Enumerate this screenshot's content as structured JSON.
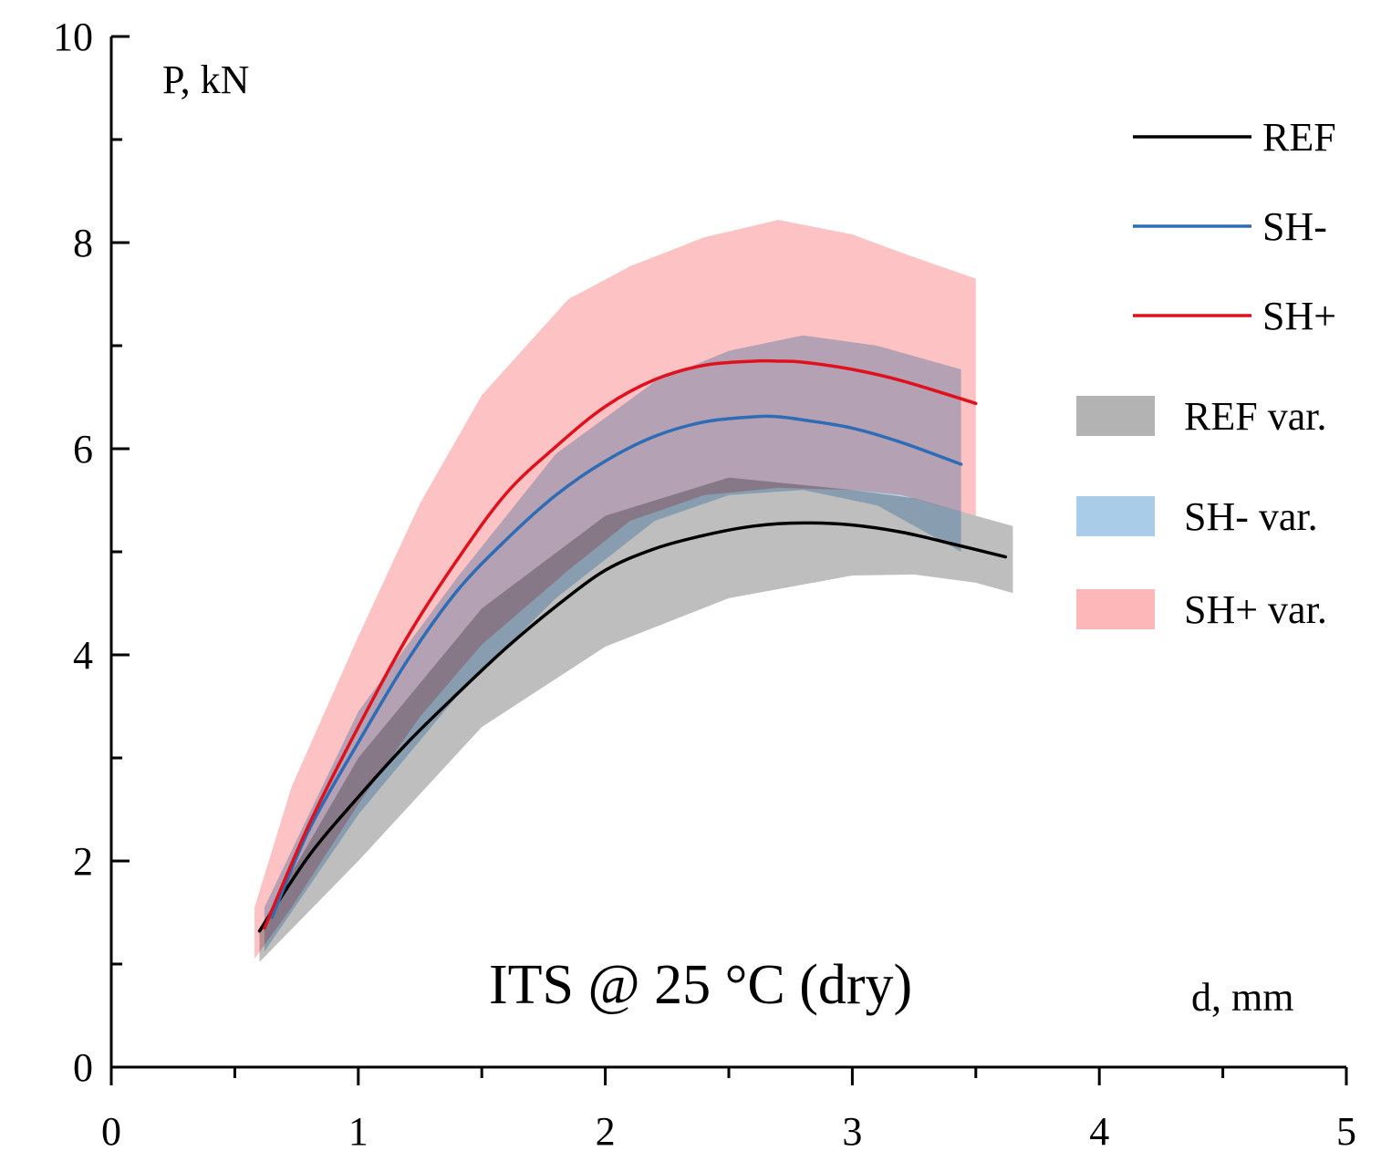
{
  "chart_data": {
    "type": "line",
    "title": "ITS @ 25 °C (dry)",
    "xlabel": "d, mm",
    "ylabel": "P, kN",
    "xlim": [
      0,
      5
    ],
    "ylim": [
      0,
      10
    ],
    "xticks": [
      0,
      1,
      2,
      3,
      4,
      5
    ],
    "yticks": [
      0,
      2,
      4,
      6,
      8,
      10
    ],
    "grid": false,
    "legend_position": "right",
    "series": [
      {
        "name": "REF",
        "color": "#000000",
        "x": [
          0.6,
          0.8,
          1.0,
          1.2,
          1.4,
          1.6,
          1.8,
          2.0,
          2.2,
          2.4,
          2.6,
          2.8,
          3.0,
          3.2,
          3.4,
          3.62
        ],
        "values": [
          1.32,
          2.05,
          2.62,
          3.15,
          3.62,
          4.07,
          4.47,
          4.82,
          5.03,
          5.16,
          5.25,
          5.28,
          5.26,
          5.19,
          5.08,
          4.95
        ]
      },
      {
        "name": "SH-",
        "color": "#2e6cb5",
        "x": [
          0.65,
          0.8,
          1.0,
          1.2,
          1.4,
          1.6,
          1.8,
          2.0,
          2.2,
          2.4,
          2.6,
          2.7,
          2.8,
          3.0,
          3.2,
          3.44
        ],
        "values": [
          1.45,
          2.3,
          3.15,
          3.95,
          4.62,
          5.12,
          5.55,
          5.88,
          6.12,
          6.26,
          6.31,
          6.31,
          6.28,
          6.2,
          6.06,
          5.85
        ]
      },
      {
        "name": "SH+",
        "color": "#e0101c",
        "x": [
          0.62,
          0.8,
          1.0,
          1.2,
          1.4,
          1.6,
          1.8,
          2.0,
          2.2,
          2.4,
          2.6,
          2.7,
          2.8,
          3.0,
          3.2,
          3.5
        ],
        "values": [
          1.35,
          2.35,
          3.3,
          4.18,
          4.92,
          5.57,
          6.02,
          6.41,
          6.67,
          6.81,
          6.85,
          6.85,
          6.84,
          6.77,
          6.66,
          6.44
        ]
      }
    ],
    "bands": [
      {
        "name": "REF var.",
        "color": "#b3b3b3",
        "x": [
          0.6,
          1.0,
          1.5,
          2.0,
          2.5,
          3.0,
          3.25,
          3.5,
          3.65
        ],
        "upper": [
          1.35,
          3.0,
          4.45,
          5.35,
          5.72,
          5.6,
          5.52,
          5.35,
          5.25
        ],
        "lower": [
          1.02,
          2.0,
          3.3,
          4.08,
          4.55,
          4.77,
          4.78,
          4.7,
          4.6
        ]
      },
      {
        "name": "SH- var.",
        "color": "#a9cde9",
        "x": [
          0.62,
          0.8,
          1.0,
          1.4,
          1.8,
          2.2,
          2.5,
          2.8,
          3.1,
          3.44
        ],
        "upper": [
          1.55,
          2.45,
          3.45,
          4.75,
          5.95,
          6.65,
          6.95,
          7.1,
          7.0,
          6.77
        ],
        "lower": [
          1.12,
          1.75,
          2.45,
          3.6,
          4.55,
          5.3,
          5.55,
          5.6,
          5.45,
          5.0
        ]
      },
      {
        "name": "SH+ var.",
        "color": "#fdb7b9",
        "x": [
          0.58,
          0.73,
          1.0,
          1.25,
          1.5,
          1.85,
          2.1,
          2.4,
          2.7,
          3.0,
          3.2,
          3.5
        ],
        "upper": [
          1.55,
          2.72,
          4.18,
          5.47,
          6.52,
          7.45,
          7.77,
          8.05,
          8.22,
          8.08,
          7.9,
          7.65
        ],
        "lower": [
          1.05,
          1.55,
          2.55,
          3.4,
          4.1,
          4.82,
          5.3,
          5.55,
          5.62,
          5.6,
          5.55,
          5.35
        ]
      }
    ]
  }
}
